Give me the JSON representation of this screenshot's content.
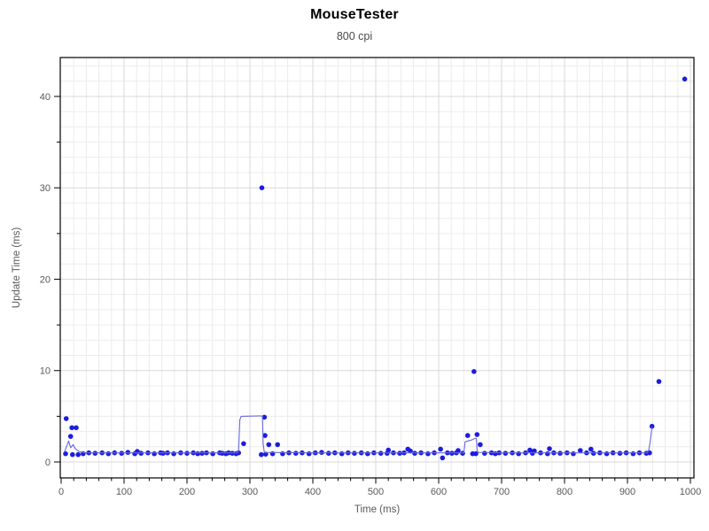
{
  "header": {
    "title": "MouseTester",
    "subtitle": "800 cpi"
  },
  "chart_data": {
    "type": "scatter",
    "title": "MouseTester",
    "subtitle": "800 cpi",
    "xlabel": "Time (ms)",
    "ylabel": "Update Time (ms)",
    "xlim": [
      -2,
      1006
    ],
    "ylim": [
      -1.75,
      44.25
    ],
    "x_major_ticks": [
      0,
      100,
      200,
      300,
      400,
      500,
      600,
      700,
      800,
      900,
      1000
    ],
    "x_minor_interval": 20,
    "y_major_ticks": [
      0,
      10,
      20,
      30,
      40
    ],
    "y_minor_tick_interval": 5,
    "y_minor_grid_interval": 1.6667,
    "grid": "minor+major",
    "legend": "none",
    "colors": {
      "point": "#1c1ce0",
      "line": "#6868e0",
      "grid_minor": "#ececec",
      "grid_major": "#d8d8d8",
      "axis": "#000000",
      "tick_label": "#595959",
      "title": "#000000",
      "subtitle": "#4a4a4a"
    },
    "series": [
      {
        "name": "update-intervals-points",
        "render": "points",
        "points": [
          [
            7,
            0.9
          ],
          [
            8,
            4.75
          ],
          [
            15,
            2.8
          ],
          [
            17,
            3.75
          ],
          [
            18,
            0.8
          ],
          [
            24,
            3.75
          ],
          [
            27,
            0.8
          ],
          [
            35,
            0.9
          ],
          [
            44,
            1.0
          ],
          [
            54,
            0.95
          ],
          [
            65,
            1.0
          ],
          [
            75,
            0.9
          ],
          [
            85,
            1.0
          ],
          [
            96,
            0.95
          ],
          [
            106,
            1.05
          ],
          [
            117,
            0.9
          ],
          [
            121,
            1.15
          ],
          [
            127,
            0.95
          ],
          [
            138,
            1.0
          ],
          [
            148,
            0.9
          ],
          [
            158,
            1.0
          ],
          [
            162,
            0.95
          ],
          [
            169,
            1.0
          ],
          [
            179,
            0.9
          ],
          [
            190,
            1.0
          ],
          [
            200,
            0.95
          ],
          [
            210,
            1.0
          ],
          [
            217,
            0.9
          ],
          [
            224,
            0.95
          ],
          [
            231,
            1.0
          ],
          [
            241,
            0.9
          ],
          [
            252,
            1.0
          ],
          [
            256,
            0.95
          ],
          [
            262,
            0.9
          ],
          [
            266,
            1.0
          ],
          [
            272,
            0.95
          ],
          [
            278,
            0.9
          ],
          [
            282,
            1.0
          ],
          [
            290,
            2.0
          ],
          [
            318,
            0.8
          ],
          [
            319,
            30.0
          ],
          [
            323,
            4.9
          ],
          [
            324,
            2.9
          ],
          [
            325,
            0.85
          ],
          [
            330,
            1.9
          ],
          [
            336,
            0.9
          ],
          [
            344,
            1.9
          ],
          [
            352,
            0.9
          ],
          [
            362,
            1.0
          ],
          [
            373,
            0.95
          ],
          [
            383,
            1.0
          ],
          [
            394,
            0.9
          ],
          [
            404,
            1.0
          ],
          [
            414,
            1.05
          ],
          [
            425,
            0.95
          ],
          [
            435,
            1.0
          ],
          [
            446,
            0.9
          ],
          [
            456,
            1.0
          ],
          [
            466,
            0.95
          ],
          [
            477,
            1.0
          ],
          [
            487,
            0.9
          ],
          [
            497,
            1.0
          ],
          [
            508,
            0.95
          ],
          [
            518,
            0.95
          ],
          [
            520,
            1.3
          ],
          [
            528,
            1.0
          ],
          [
            538,
            0.95
          ],
          [
            545,
            1.0
          ],
          [
            551,
            1.4
          ],
          [
            555,
            1.2
          ],
          [
            562,
            0.95
          ],
          [
            572,
            1.0
          ],
          [
            583,
            0.9
          ],
          [
            593,
            1.0
          ],
          [
            603,
            1.4
          ],
          [
            606,
            0.45
          ],
          [
            614,
            1.0
          ],
          [
            621,
            0.95
          ],
          [
            628,
            1.0
          ],
          [
            631,
            1.25
          ],
          [
            638,
            0.95
          ],
          [
            646,
            2.9
          ],
          [
            654,
            0.9
          ],
          [
            656,
            9.9
          ],
          [
            659,
            0.9
          ],
          [
            661,
            3.0
          ],
          [
            666,
            1.9
          ],
          [
            673,
            0.95
          ],
          [
            684,
            1.0
          ],
          [
            690,
            0.9
          ],
          [
            696,
            1.0
          ],
          [
            706,
            0.95
          ],
          [
            717,
            1.0
          ],
          [
            727,
            0.9
          ],
          [
            738,
            1.0
          ],
          [
            745,
            1.3
          ],
          [
            749,
            0.95
          ],
          [
            752,
            1.2
          ],
          [
            762,
            1.0
          ],
          [
            773,
            0.9
          ],
          [
            776,
            1.45
          ],
          [
            783,
            1.0
          ],
          [
            793,
            0.95
          ],
          [
            804,
            1.0
          ],
          [
            814,
            0.9
          ],
          [
            825,
            1.25
          ],
          [
            835,
            1.0
          ],
          [
            842,
            1.4
          ],
          [
            846,
            0.95
          ],
          [
            856,
            1.0
          ],
          [
            867,
            0.9
          ],
          [
            877,
            1.0
          ],
          [
            888,
            0.95
          ],
          [
            898,
            1.0
          ],
          [
            909,
            0.9
          ],
          [
            919,
            1.0
          ],
          [
            930,
            0.95
          ],
          [
            935,
            1.0
          ],
          [
            939,
            3.9
          ],
          [
            950,
            8.8
          ],
          [
            991,
            41.9
          ]
        ]
      },
      {
        "name": "update-intervals-trend",
        "render": "line",
        "points": [
          [
            5,
            1.05
          ],
          [
            12,
            2.3
          ],
          [
            15,
            1.55
          ],
          [
            19,
            1.9
          ],
          [
            22,
            1.5
          ],
          [
            27,
            1.2
          ],
          [
            33,
            1.05
          ],
          [
            44,
            1.0
          ],
          [
            100,
            1.0
          ],
          [
            200,
            1.0
          ],
          [
            280,
            1.0
          ],
          [
            282,
            1.2
          ],
          [
            284,
            4.6
          ],
          [
            286,
            5.0
          ],
          [
            317,
            5.05
          ],
          [
            320,
            5.0
          ],
          [
            321,
            2.0
          ],
          [
            323,
            1.05
          ],
          [
            400,
            1.0
          ],
          [
            500,
            1.0
          ],
          [
            600,
            1.0
          ],
          [
            640,
            1.0
          ],
          [
            642,
            2.2
          ],
          [
            646,
            2.3
          ],
          [
            652,
            2.4
          ],
          [
            658,
            2.6
          ],
          [
            660,
            2.55
          ],
          [
            661,
            1.3
          ],
          [
            663,
            1.05
          ],
          [
            700,
            1.0
          ],
          [
            800,
            1.0
          ],
          [
            900,
            1.0
          ],
          [
            932,
            1.0
          ],
          [
            934,
            1.35
          ],
          [
            936,
            2.2
          ],
          [
            939,
            3.85
          ]
        ]
      }
    ]
  }
}
